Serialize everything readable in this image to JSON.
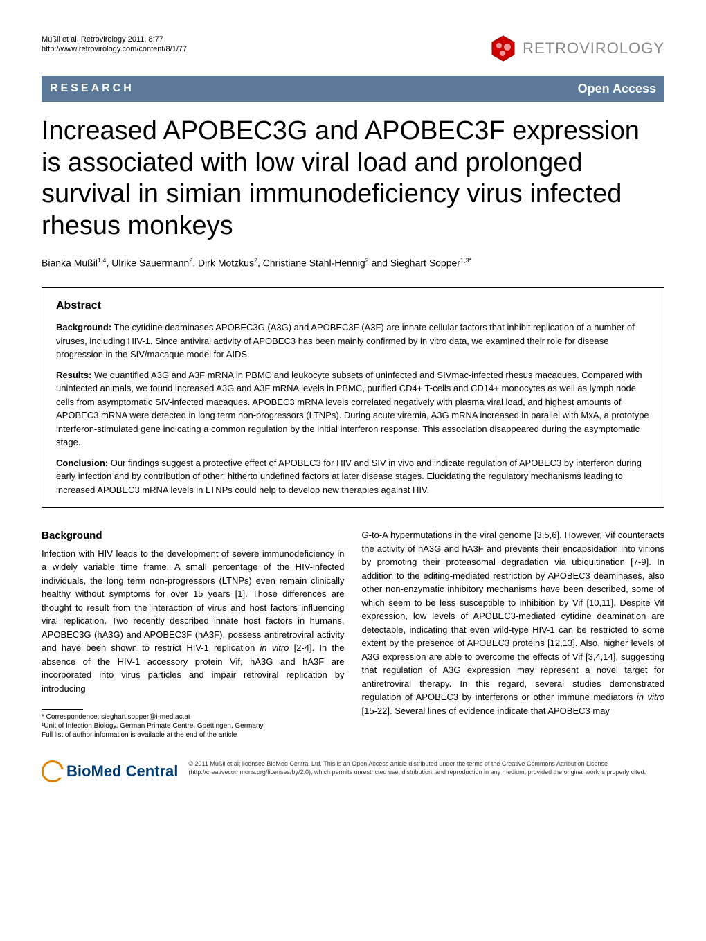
{
  "header": {
    "citation_line1": "Mußil et al. Retrovirology 2011, 8:77",
    "citation_line2": "http://www.retrovirology.com/content/8/1/77",
    "journal_name": "RETROVIROLOGY"
  },
  "section_bar": {
    "label": "RESEARCH",
    "open_access": "Open Access"
  },
  "article": {
    "title": "Increased APOBEC3G and APOBEC3F expression is associated with low viral load and prolonged survival in simian immunodeficiency virus infected rhesus monkeys",
    "authors_html": "Bianka Mußil<sup>1,4</sup>, Ulrike Sauermann<sup>2</sup>, Dirk Motzkus<sup>2</sup>, Christiane Stahl-Hennig<sup>2</sup> and Sieghart Sopper<sup>1,3*</sup>"
  },
  "abstract": {
    "heading": "Abstract",
    "background_label": "Background:",
    "background_text": " The cytidine deaminases APOBEC3G (A3G) and APOBEC3F (A3F) are innate cellular factors that inhibit replication of a number of viruses, including HIV-1. Since antiviral activity of APOBEC3 has been mainly confirmed by in vitro data, we examined their role for disease progression in the SIV/macaque model for AIDS.",
    "results_label": "Results:",
    "results_text": " We quantified A3G and A3F mRNA in PBMC and leukocyte subsets of uninfected and SIVmac-infected rhesus macaques. Compared with uninfected animals, we found increased A3G and A3F mRNA levels in PBMC, purified CD4+ T-cells and CD14+ monocytes as well as lymph node cells from asymptomatic SIV-infected macaques. APOBEC3 mRNA levels correlated negatively with plasma viral load, and highest amounts of APOBEC3 mRNA were detected in long term non-progressors (LTNPs). During acute viremia, A3G mRNA increased in parallel with MxA, a prototype interferon-stimulated gene indicating a common regulation by the initial interferon response. This association disappeared during the asymptomatic stage.",
    "conclusion_label": "Conclusion:",
    "conclusion_text": " Our findings suggest a protective effect of APOBEC3 for HIV and SIV in vivo and indicate regulation of APOBEC3 by interferon during early infection and by contribution of other, hitherto undefined factors at later disease stages. Elucidating the regulatory mechanisms leading to increased APOBEC3 mRNA levels in LTNPs could help to develop new therapies against HIV."
  },
  "body": {
    "background_heading": "Background",
    "col1_text": "Infection with HIV leads to the development of severe immunodeficiency in a widely variable time frame. A small percentage of the HIV-infected individuals, the long term non-progressors (LTNPs) even remain clinically healthy without symptoms for over 15 years [1]. Those differences are thought to result from the interaction of virus and host factors influencing viral replication. Two recently described innate host factors in humans, APOBEC3G (hA3G) and APOBEC3F (hA3F), possess antiretroviral activity and have been shown to restrict HIV-1 replication in vitro [2-4]. In the absence of the HIV-1 accessory protein Vif, hA3G and hA3F are incorporated into virus particles and impair retroviral replication by introducing",
    "col2_text": "G-to-A hypermutations in the viral genome [3,5,6]. However, Vif counteracts the activity of hA3G and hA3F and prevents their encapsidation into virions by promoting their proteasomal degradation via ubiquitination [7-9]. In addition to the editing-mediated restriction by APOBEC3 deaminases, also other non-enzymatic inhibitory mechanisms have been described, some of which seem to be less susceptible to inhibition by Vif [10,11]. Despite Vif expression, low levels of APOBEC3-mediated cytidine deamination are detectable, indicating that even wild-type HIV-1 can be restricted to some extent by the presence of APOBEC3 proteins [12,13]. Also, higher levels of A3G expression are able to overcome the effects of Vif [3,4,14], suggesting that regulation of A3G expression may represent a novel target for antiretroviral therapy. In this regard, several studies demonstrated regulation of APOBEC3 by interferons or other immune mediators in vitro [15-22]. Several lines of evidence indicate that APOBEC3 may"
  },
  "footnotes": {
    "correspondence": "* Correspondence: sieghart.sopper@i-med.ac.at",
    "affiliation": "¹Unit of Infection Biology, German Primate Centre, Goettingen, Germany",
    "full_list": "Full list of author information is available at the end of the article"
  },
  "license": {
    "bmc_name": "BioMed Central",
    "text": "© 2011 Mußil et al; licensee BioMed Central Ltd. This is an Open Access article distributed under the terms of the Creative Commons Attribution License (http://creativecommons.org/licenses/by/2.0), which permits unrestricted use, distribution, and reproduction in any medium, provided the original work is properly cited."
  },
  "colors": {
    "section_bar_bg": "#5b7a99",
    "journal_name": "#888888",
    "bmc_blue": "#003a6f",
    "bmc_orange": "#e08000"
  }
}
